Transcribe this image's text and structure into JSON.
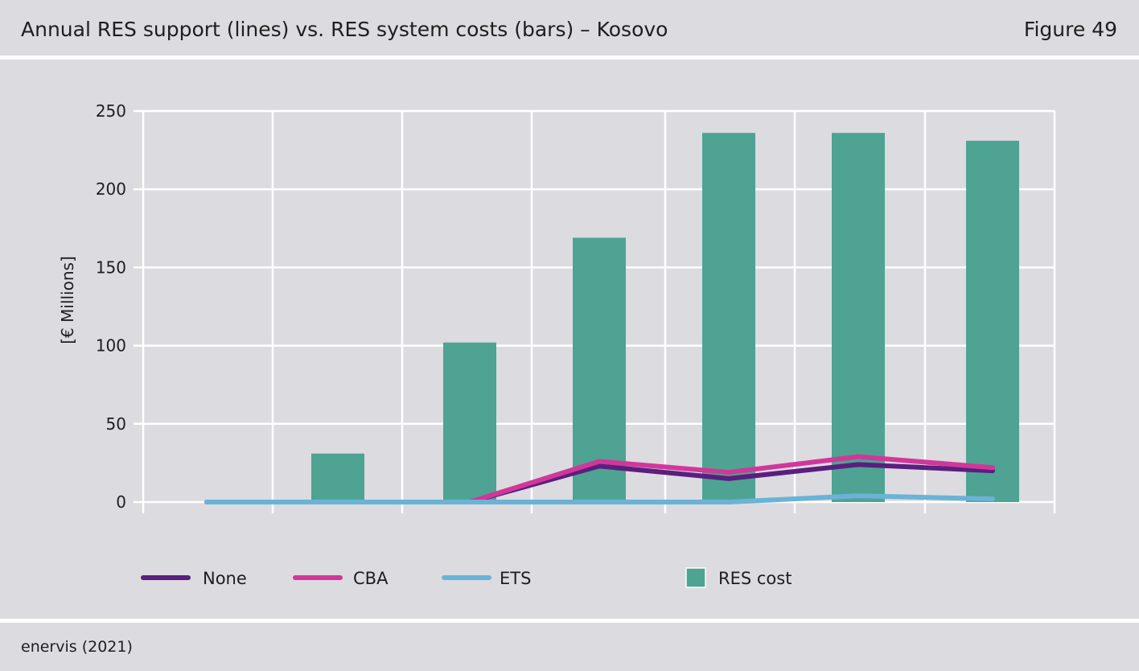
{
  "header": {
    "title": "Annual RES support (lines) vs. RES system costs (bars) – Kosovo",
    "figure_label": "Figure 49"
  },
  "footer": {
    "source": "enervis (2021)"
  },
  "chart_data": {
    "type": "bar",
    "title": "Annual RES support (lines) vs. RES system costs (bars) – Kosovo",
    "xlabel": "",
    "ylabel": "[€ Millions]",
    "ylim": [
      0,
      250
    ],
    "yticks": [
      0,
      50,
      100,
      150,
      200,
      250
    ],
    "categories": [
      "",
      "",
      "",
      "",
      "",
      "",
      ""
    ],
    "grid": true,
    "legend_position": "bottom",
    "bars": [
      {
        "name": "RES cost",
        "color": "#4ea393",
        "values": [
          0,
          31,
          102,
          169,
          236,
          236,
          231
        ]
      }
    ],
    "lines": [
      {
        "name": "None",
        "color": "#5a1f7e",
        "values": [
          0,
          0,
          0,
          23,
          15,
          24,
          20
        ]
      },
      {
        "name": "CBA",
        "color": "#d1379a",
        "values": [
          0,
          0,
          0,
          26,
          19,
          29,
          22
        ]
      },
      {
        "name": "ETS",
        "color": "#6ab3d6",
        "values": [
          0,
          0,
          0,
          0,
          0,
          4,
          2
        ]
      }
    ]
  }
}
